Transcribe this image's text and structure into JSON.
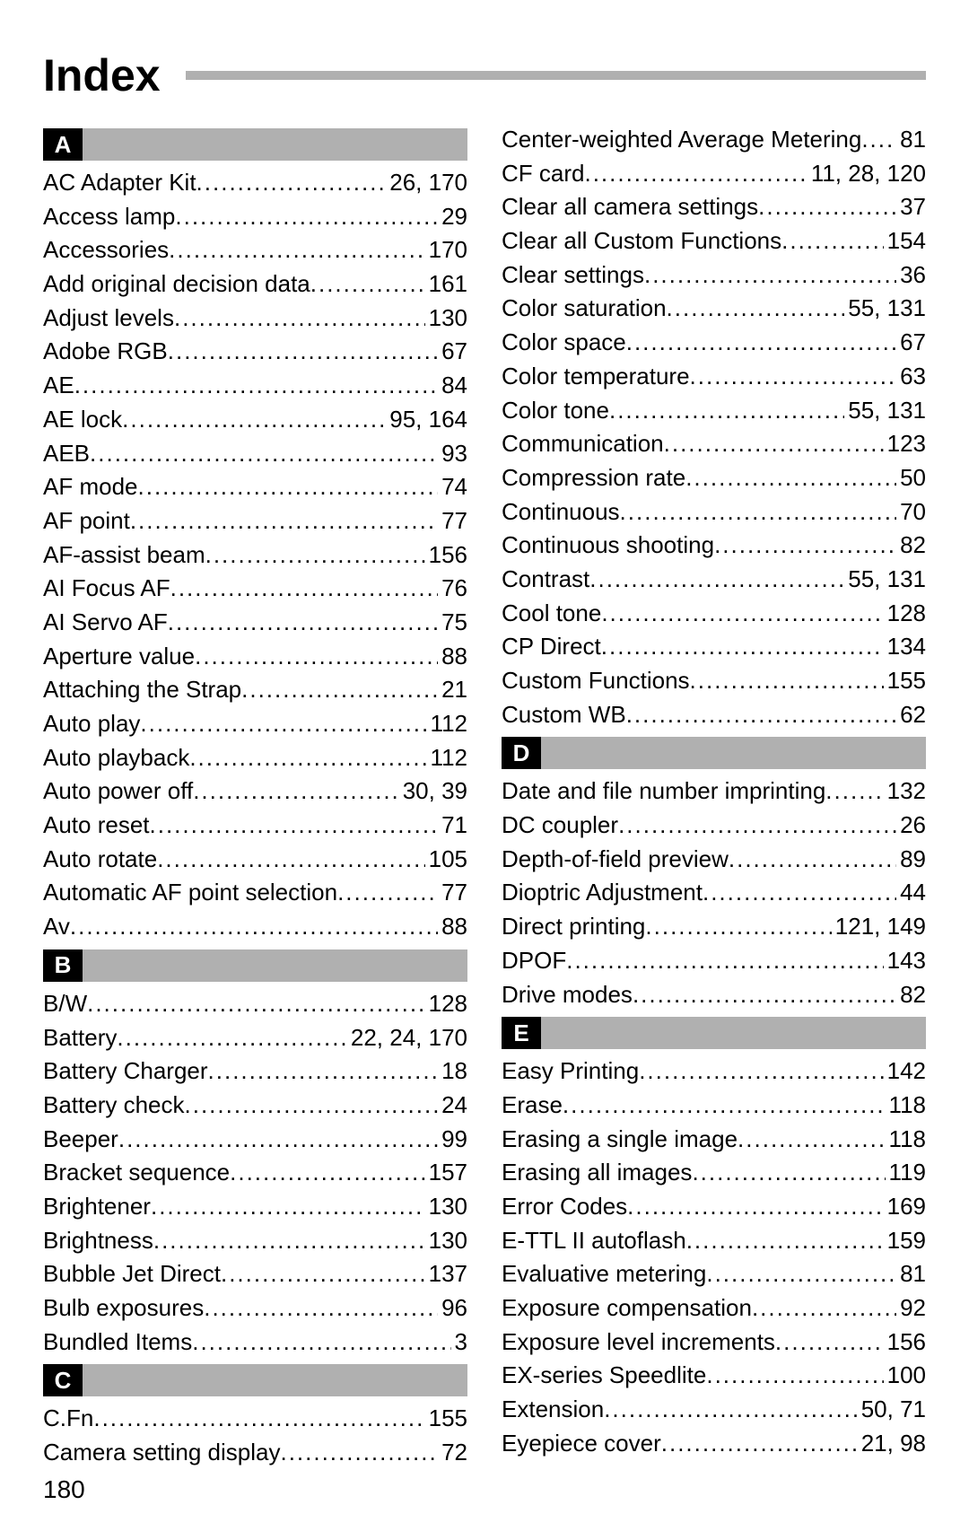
{
  "title": "Index",
  "page_number": "180",
  "columns": [
    {
      "sections": [
        {
          "letter": "A",
          "entries": [
            {
              "term": "AC Adapter Kit",
              "pages": "26, 170"
            },
            {
              "term": "Access lamp",
              "pages": "29"
            },
            {
              "term": "Accessories",
              "pages": "170"
            },
            {
              "term": "Add original decision data",
              "pages": "161"
            },
            {
              "term": "Adjust levels",
              "pages": "130"
            },
            {
              "term": "Adobe RGB",
              "pages": "67"
            },
            {
              "term": "AE",
              "pages": "84"
            },
            {
              "term": "AE lock",
              "pages": "95, 164"
            },
            {
              "term": "AEB",
              "pages": "93"
            },
            {
              "term": "AF mode",
              "pages": "74"
            },
            {
              "term": "AF point",
              "pages": "77"
            },
            {
              "term": "AF-assist beam",
              "pages": "156"
            },
            {
              "term": "AI Focus AF",
              "pages": "76"
            },
            {
              "term": "AI Servo AF",
              "pages": "75"
            },
            {
              "term": "Aperture value",
              "pages": "88"
            },
            {
              "term": "Attaching the Strap",
              "pages": "21"
            },
            {
              "term": "Auto play",
              "pages": "112"
            },
            {
              "term": "Auto playback",
              "pages": "112"
            },
            {
              "term": "Auto power off",
              "pages": "30, 39"
            },
            {
              "term": "Auto reset",
              "pages": "71"
            },
            {
              "term": "Auto rotate",
              "pages": "105"
            },
            {
              "term": "Automatic AF point selection",
              "pages": "77"
            },
            {
              "term": "Av",
              "pages": "88"
            }
          ]
        },
        {
          "letter": "B",
          "entries": [
            {
              "term": "B/W",
              "pages": "128"
            },
            {
              "term": "Battery",
              "pages": "22, 24, 170"
            },
            {
              "term": "Battery Charger",
              "pages": "18"
            },
            {
              "term": "Battery check",
              "pages": "24"
            },
            {
              "term": "Beeper",
              "pages": "99"
            },
            {
              "term": "Bracket sequence",
              "pages": "157"
            },
            {
              "term": "Brightener",
              "pages": "130"
            },
            {
              "term": "Brightness",
              "pages": "130"
            },
            {
              "term": "Bubble Jet Direct",
              "pages": "137"
            },
            {
              "term": "Bulb exposures",
              "pages": "96"
            },
            {
              "term": "Bundled Items",
              "pages": "3"
            }
          ]
        },
        {
          "letter": "C",
          "entries": [
            {
              "term": "C.Fn",
              "pages": "155"
            },
            {
              "term": "Camera setting display",
              "pages": "72"
            }
          ]
        }
      ]
    },
    {
      "sections": [
        {
          "letter": null,
          "entries": [
            {
              "term": "Center-weighted Average Metering",
              "pages": "81"
            },
            {
              "term": "CF card",
              "pages": "11, 28, 120"
            },
            {
              "term": "Clear all camera settings",
              "pages": "37"
            },
            {
              "term": "Clear all Custom Functions",
              "pages": "154"
            },
            {
              "term": "Clear settings",
              "pages": "36"
            },
            {
              "term": "Color saturation",
              "pages": "55, 131"
            },
            {
              "term": "Color space",
              "pages": "67"
            },
            {
              "term": "Color temperature",
              "pages": "63"
            },
            {
              "term": "Color tone",
              "pages": "55, 131"
            },
            {
              "term": "Communication",
              "pages": "123"
            },
            {
              "term": "Compression rate",
              "pages": "50"
            },
            {
              "term": "Continuous",
              "pages": "70"
            },
            {
              "term": "Continuous shooting",
              "pages": "82"
            },
            {
              "term": "Contrast",
              "pages": "55, 131"
            },
            {
              "term": "Cool tone",
              "pages": "128"
            },
            {
              "term": "CP Direct",
              "pages": "134"
            },
            {
              "term": "Custom Functions",
              "pages": "155"
            },
            {
              "term": "Custom WB",
              "pages": "62"
            }
          ]
        },
        {
          "letter": "D",
          "entries": [
            {
              "term": "Date and file number imprinting",
              "pages": "132"
            },
            {
              "term": "DC coupler",
              "pages": "26"
            },
            {
              "term": "Depth-of-field preview",
              "pages": "89"
            },
            {
              "term": "Dioptric Adjustment",
              "pages": "44"
            },
            {
              "term": "Direct printing",
              "pages": "121, 149"
            },
            {
              "term": "DPOF",
              "pages": "143"
            },
            {
              "term": "Drive modes",
              "pages": "82"
            }
          ]
        },
        {
          "letter": "E",
          "entries": [
            {
              "term": "Easy Printing",
              "pages": "142"
            },
            {
              "term": "Erase",
              "pages": "118"
            },
            {
              "term": "Erasing a single image",
              "pages": "118"
            },
            {
              "term": "Erasing all images",
              "pages": "119"
            },
            {
              "term": "Error Codes",
              "pages": "169"
            },
            {
              "term": "E-TTL II autoflash",
              "pages": "159"
            },
            {
              "term": "Evaluative metering",
              "pages": "81"
            },
            {
              "term": "Exposure compensation",
              "pages": "92"
            },
            {
              "term": "Exposure level increments",
              "pages": "156"
            },
            {
              "term": "EX-series Speedlite",
              "pages": "100"
            },
            {
              "term": "Extension",
              "pages": "50, 71"
            },
            {
              "term": "Eyepiece cover",
              "pages": "21, 98"
            }
          ]
        }
      ]
    }
  ]
}
